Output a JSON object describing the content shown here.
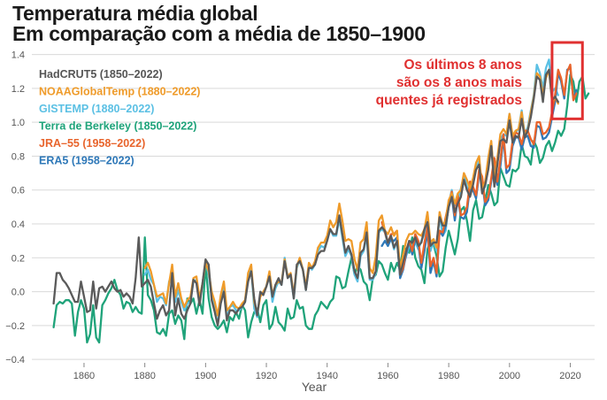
{
  "title_line1": "Temperatura média global",
  "title_line2": "Em comparação com a média de 1850–1900",
  "annotation": [
    "Os últimos 8 anos",
    "são os 8 anos mais",
    "quentes já registrados"
  ],
  "colors": {
    "highlight": "#e03030",
    "grid": "#d9d9d9",
    "axis": "#555555"
  },
  "chart_data": {
    "type": "line",
    "xlabel": "Year",
    "ylabel": "",
    "xlim": [
      1844,
      2028
    ],
    "ylim": [
      -0.42,
      1.45
    ],
    "xticks": [
      "1860",
      "1880",
      "1900",
      "1920",
      "1940",
      "1960",
      "1980",
      "2000",
      "2020"
    ],
    "yticks": [
      "−0.4",
      "−0.2",
      "0.0",
      "0.2",
      "0.4",
      "0.6",
      "0.8",
      "1.0",
      "1.2",
      "1.4"
    ],
    "ytick_values": [
      -0.4,
      -0.2,
      0.0,
      0.2,
      0.4,
      0.6,
      0.8,
      1.0,
      1.2,
      1.4
    ],
    "highlight_box": {
      "x_range": [
        2014,
        2024
      ],
      "y_range": [
        1.02,
        1.45
      ]
    },
    "series": [
      {
        "name": "Terra de Berkeley (1850–2022)",
        "color": "#1fa37a",
        "start": 1850,
        "values": [
          -0.21,
          -0.08,
          -0.06,
          -0.07,
          -0.05,
          -0.05,
          -0.07,
          -0.26,
          -0.12,
          -0.05,
          -0.1,
          -0.3,
          -0.25,
          -0.08,
          -0.27,
          -0.3,
          -0.08,
          -0.05,
          -0.01,
          0.02,
          0.07,
          0.01,
          -0.02,
          -0.1,
          -0.06,
          -0.07,
          -0.12,
          -0.09,
          -0.12,
          -0.13,
          0.32,
          -0.02,
          -0.05,
          -0.11,
          -0.24,
          -0.25,
          -0.22,
          -0.26,
          -0.13,
          -0.11,
          -0.19,
          -0.14,
          -0.17,
          -0.28,
          -0.04,
          -0.07,
          -0.04,
          -0.13,
          -0.05,
          -0.13,
          0.16,
          -0.04,
          -0.15,
          -0.2,
          -0.22,
          -0.2,
          -0.17,
          -0.24,
          -0.15,
          -0.17,
          -0.12,
          -0.16,
          -0.08,
          -0.11,
          -0.27,
          -0.18,
          -0.12,
          -0.1,
          -0.18,
          -0.08,
          -0.05,
          -0.22,
          -0.19,
          -0.09,
          -0.18,
          -0.2,
          -0.23,
          -0.1,
          -0.16,
          -0.15,
          -0.05,
          -0.1,
          -0.09,
          -0.2,
          -0.22,
          -0.22,
          -0.14,
          -0.11,
          -0.06,
          -0.08,
          -0.1,
          -0.06,
          -0.04,
          0.09,
          0.08,
          0.02,
          0.03,
          0.12,
          0.2,
          0.1,
          0.15,
          0.13,
          0.06,
          0.04,
          -0.05,
          0.08,
          0.1,
          0.18,
          0.16,
          0.11,
          0.07,
          0.17,
          0.12,
          0.17,
          0.13,
          0.27,
          0.25,
          0.23,
          0.32,
          0.2,
          0.15,
          0.13,
          0.05,
          0.25,
          0.3,
          0.28,
          0.21,
          0.09,
          0.12,
          0.26,
          0.36,
          0.29,
          0.22,
          0.31,
          0.48,
          0.5,
          0.42,
          0.3,
          0.48,
          0.54,
          0.43,
          0.44,
          0.53,
          0.63,
          0.58,
          0.51,
          0.53,
          0.73,
          0.68,
          0.63,
          0.62,
          0.72,
          0.71,
          0.73,
          0.87,
          0.8,
          0.79,
          0.75,
          0.89,
          0.85,
          0.76,
          0.79,
          0.86,
          0.89,
          0.83,
          0.88,
          0.95,
          0.92,
          0.96,
          1.1,
          1.28,
          1.24,
          1.12,
          1.24,
          1.27,
          1.14,
          1.17
        ]
      },
      {
        "name": "GISTEMP (1880–2022)",
        "color": "#5bc0e4",
        "start": 1880,
        "values": [
          0.1,
          0.13,
          0.07,
          0.04,
          -0.06,
          -0.03,
          -0.04,
          -0.08,
          0.06,
          0.1,
          -0.06,
          0.01,
          -0.06,
          -0.11,
          -0.07,
          -0.06,
          0.06,
          0.07,
          -0.05,
          0.05,
          0.18,
          0.1,
          -0.03,
          -0.11,
          -0.19,
          -0.06,
          0.03,
          -0.16,
          -0.09,
          -0.08,
          -0.11,
          -0.11,
          -0.09,
          -0.06,
          0.1,
          0.14,
          -0.1,
          -0.15,
          -0.01,
          -0.01,
          0.03,
          0.1,
          -0.06,
          0.02,
          0.06,
          0.04,
          0.2,
          0.09,
          0.09,
          -0.04,
          0.14,
          0.19,
          0.13,
          0.01,
          0.15,
          0.13,
          0.16,
          0.24,
          0.27,
          0.26,
          0.3,
          0.37,
          0.33,
          0.33,
          0.43,
          0.32,
          0.21,
          0.25,
          0.21,
          0.1,
          0.06,
          0.21,
          0.24,
          0.33,
          0.07,
          0.07,
          0.11,
          0.35,
          0.37,
          0.35,
          0.27,
          0.32,
          0.25,
          0.3,
          0.09,
          0.15,
          0.21,
          0.27,
          0.27,
          0.29,
          0.25,
          0.3,
          0.34,
          0.43,
          0.24,
          0.3,
          0.24,
          0.45,
          0.33,
          0.36,
          0.52,
          0.6,
          0.51,
          0.54,
          0.61,
          0.69,
          0.62,
          0.59,
          0.64,
          0.73,
          0.77,
          0.59,
          0.62,
          0.73,
          0.88,
          0.64,
          0.76,
          0.9,
          0.93,
          0.92,
          1.05,
          0.9,
          0.94,
          0.96,
          1.07,
          0.93,
          0.97,
          1.07,
          1.16,
          1.34,
          1.29,
          1.2,
          1.32,
          1.37,
          1.18,
          1.2,
          1.16
        ]
      },
      {
        "name": "ERA5 (1958–2022)",
        "color": "#2e78b8",
        "start": 1958,
        "values": [
          0.27,
          0.3,
          0.27,
          0.31,
          0.3,
          0.32,
          0.08,
          0.13,
          0.22,
          0.3,
          0.22,
          0.31,
          0.28,
          0.14,
          0.24,
          0.36,
          0.11,
          0.18,
          0.09,
          0.36,
          0.33,
          0.39,
          0.5,
          0.56,
          0.42,
          0.55,
          0.44,
          0.43,
          0.47,
          0.62,
          0.6,
          0.55,
          0.7,
          0.65,
          0.51,
          0.54,
          0.65,
          0.76,
          0.63,
          0.74,
          0.91,
          0.7,
          0.72,
          0.86,
          0.91,
          0.91,
          0.84,
          0.91,
          0.92,
          0.86,
          0.85,
          0.98,
          0.97,
          0.9,
          0.91,
          0.94,
          1.03,
          1.12,
          1.29,
          1.24,
          1.14,
          1.31,
          1.32,
          1.14,
          1.19
        ]
      },
      {
        "name": "JRA–55 (1958–2022)",
        "color": "#e8642c",
        "start": 1958,
        "values": [
          0.41,
          0.35,
          0.29,
          0.34,
          0.34,
          0.36,
          0.1,
          0.14,
          0.24,
          0.3,
          0.24,
          0.34,
          0.3,
          0.17,
          0.29,
          0.38,
          0.15,
          0.2,
          0.11,
          0.36,
          0.35,
          0.44,
          0.52,
          0.59,
          0.45,
          0.57,
          0.45,
          0.46,
          0.5,
          0.65,
          0.62,
          0.57,
          0.72,
          0.68,
          0.53,
          0.56,
          0.67,
          0.79,
          0.65,
          0.78,
          0.93,
          0.73,
          0.75,
          0.89,
          0.94,
          0.93,
          0.87,
          0.95,
          0.95,
          0.9,
          0.87,
          1.0,
          1.0,
          0.93,
          0.94,
          0.97,
          1.06,
          1.16,
          1.31,
          1.26,
          1.16,
          1.3,
          1.34,
          1.13,
          1.17
        ]
      },
      {
        "name": "NOAAGlobalTemp (1880–2022)",
        "color": "#ef9b2a",
        "start": 1880,
        "values": [
          0.14,
          0.17,
          0.12,
          0.04,
          -0.03,
          -0.02,
          -0.01,
          -0.07,
          0.05,
          0.16,
          -0.03,
          0.05,
          -0.04,
          -0.09,
          -0.05,
          -0.03,
          0.08,
          0.09,
          -0.04,
          0.05,
          0.17,
          0.12,
          0.0,
          -0.06,
          -0.14,
          -0.02,
          0.06,
          -0.11,
          -0.09,
          -0.06,
          -0.09,
          -0.1,
          -0.07,
          -0.05,
          0.11,
          0.16,
          -0.06,
          -0.13,
          -0.03,
          0.0,
          0.03,
          0.12,
          -0.02,
          0.04,
          0.06,
          0.05,
          0.19,
          0.09,
          0.11,
          -0.02,
          0.15,
          0.2,
          0.13,
          0.03,
          0.17,
          0.14,
          0.18,
          0.26,
          0.29,
          0.29,
          0.33,
          0.42,
          0.38,
          0.41,
          0.52,
          0.42,
          0.3,
          0.31,
          0.3,
          0.19,
          0.13,
          0.29,
          0.31,
          0.41,
          0.14,
          0.11,
          0.21,
          0.42,
          0.45,
          0.36,
          0.34,
          0.38,
          0.33,
          0.36,
          0.13,
          0.22,
          0.3,
          0.34,
          0.34,
          0.36,
          0.34,
          0.33,
          0.37,
          0.47,
          0.29,
          0.31,
          0.26,
          0.47,
          0.39,
          0.42,
          0.54,
          0.58,
          0.52,
          0.58,
          0.6,
          0.7,
          0.66,
          0.61,
          0.67,
          0.76,
          0.8,
          0.6,
          0.65,
          0.79,
          0.89,
          0.65,
          0.79,
          0.93,
          0.96,
          0.93,
          1.05,
          0.92,
          0.95,
          0.96,
          1.06,
          0.92,
          0.95,
          1.06,
          1.15,
          1.29,
          1.27,
          1.16,
          1.26,
          1.31,
          1.12,
          1.15,
          1.11
        ]
      },
      {
        "name": "HadCRUT5 (1850–2022)",
        "color": "#5a5a5a",
        "start": 1850,
        "values": [
          -0.07,
          0.11,
          0.11,
          0.07,
          0.05,
          0.02,
          -0.02,
          -0.06,
          -0.06,
          0.06,
          -0.03,
          -0.12,
          -0.11,
          0.06,
          -0.1,
          0.02,
          0.03,
          0.0,
          0.03,
          0.06,
          0.02,
          0.0,
          0.01,
          -0.03,
          -0.01,
          -0.03,
          -0.07,
          0.08,
          0.32,
          0.03,
          0.05,
          0.07,
          0.03,
          -0.07,
          -0.16,
          -0.11,
          -0.08,
          -0.14,
          -0.11,
          0.11,
          -0.14,
          -0.04,
          -0.13,
          -0.16,
          -0.11,
          -0.07,
          0.07,
          0.05,
          -0.08,
          0.05,
          0.19,
          0.16,
          -0.05,
          -0.12,
          -0.2,
          -0.07,
          0.0,
          -0.17,
          -0.11,
          -0.11,
          -0.13,
          -0.1,
          -0.09,
          -0.06,
          0.06,
          0.12,
          -0.04,
          -0.14,
          0.0,
          -0.02,
          0.03,
          0.09,
          -0.03,
          0.04,
          0.08,
          0.04,
          0.18,
          0.08,
          0.1,
          -0.04,
          0.16,
          0.18,
          0.13,
          0.01,
          0.14,
          0.14,
          0.16,
          0.22,
          0.24,
          0.24,
          0.3,
          0.37,
          0.34,
          0.34,
          0.45,
          0.34,
          0.23,
          0.27,
          0.22,
          0.12,
          0.08,
          0.23,
          0.25,
          0.35,
          0.08,
          0.08,
          0.12,
          0.36,
          0.38,
          0.36,
          0.29,
          0.33,
          0.26,
          0.3,
          0.1,
          0.17,
          0.24,
          0.3,
          0.29,
          0.32,
          0.27,
          0.29,
          0.37,
          0.41,
          0.27,
          0.29,
          0.29,
          0.44,
          0.39,
          0.39,
          0.5,
          0.56,
          0.47,
          0.52,
          0.56,
          0.66,
          0.6,
          0.56,
          0.63,
          0.72,
          0.75,
          0.58,
          0.63,
          0.72,
          0.86,
          0.62,
          0.75,
          0.89,
          0.9,
          0.88,
          1.01,
          0.88,
          0.92,
          0.91,
          1.02,
          0.91,
          0.95,
          1.03,
          1.14,
          1.27,
          1.25,
          1.12,
          1.28,
          1.31,
          1.13,
          1.15,
          1.12
        ]
      }
    ],
    "legend": [
      {
        "label": "HadCRUT5 (1850–2022)",
        "color": "#555555"
      },
      {
        "label": "NOAAGlobalTemp (1880–2022)",
        "color": "#ef9b2a"
      },
      {
        "label": "GISTEMP (1880–2022)",
        "color": "#5bc0e4"
      },
      {
        "label": "Terra de Berkeley (1850–2022)",
        "color": "#1fa37a"
      },
      {
        "label": "JRA–55 (1958–2022)",
        "color": "#e8642c"
      },
      {
        "label": "ERA5 (1958–2022)",
        "color": "#2e78b8"
      }
    ]
  }
}
